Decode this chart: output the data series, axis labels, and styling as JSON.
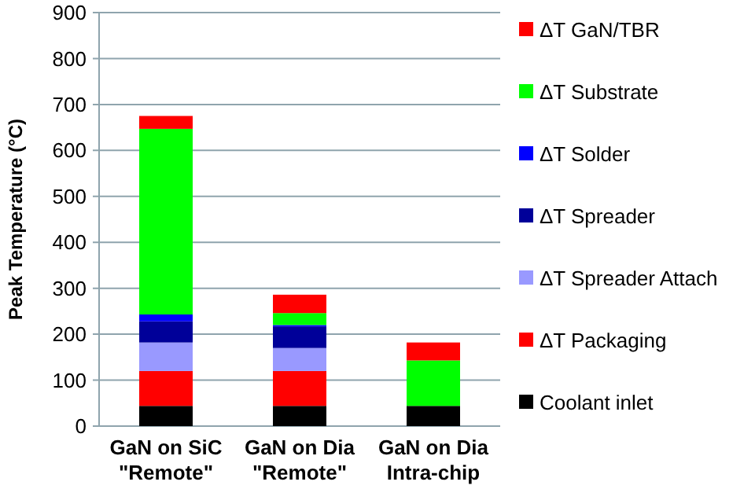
{
  "chart_data": {
    "type": "bar",
    "stacked": true,
    "ylabel": "Peak Temperature (°C)",
    "categories": [
      "GaN on SiC\n\"Remote\"",
      "GaN on Dia\n\"Remote\"",
      "GaN on Dia\nIntra-chip"
    ],
    "series": [
      {
        "name": "Coolant inlet",
        "color": "#000000",
        "values": [
          44,
          44,
          44
        ]
      },
      {
        "name": "ΔT Packaging",
        "color": "#ff0000",
        "values": [
          76,
          76,
          0
        ]
      },
      {
        "name": "ΔT Spreader Attach",
        "color": "#9999ff",
        "values": [
          62,
          50,
          0
        ]
      },
      {
        "name": "ΔT Spreader",
        "color": "#000099",
        "values": [
          46,
          47,
          0
        ]
      },
      {
        "name": "ΔT Solder",
        "color": "#0000ff",
        "values": [
          15,
          3,
          0
        ]
      },
      {
        "name": "ΔT Substrate",
        "color": "#00ff00",
        "values": [
          404,
          26,
          99
        ]
      },
      {
        "name": "ΔT GaN/TBR",
        "color": "#ff0000",
        "values": [
          28,
          40,
          39
        ]
      }
    ],
    "ylim": [
      0,
      900
    ],
    "yticks": [
      0,
      100,
      200,
      300,
      400,
      500,
      600,
      700,
      800,
      900
    ],
    "grid": "y",
    "legend": "right"
  }
}
